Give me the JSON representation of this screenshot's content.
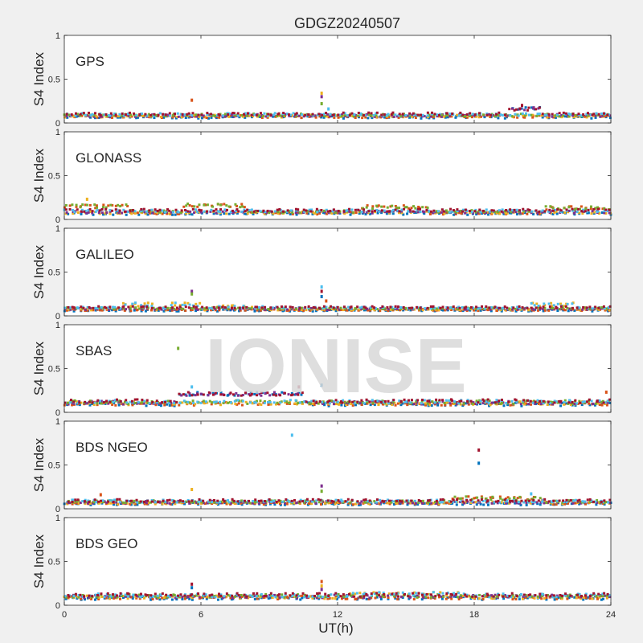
{
  "figure": {
    "title": "GDGZ20240507",
    "watermark": "IONISE",
    "xlabel": "UT(h)",
    "ylabel": "S4 Index",
    "xticks": [
      "0",
      "6",
      "12",
      "18",
      "24"
    ],
    "yticks": [
      "0",
      "0.5",
      "1"
    ]
  },
  "colors": {
    "series": [
      "#0072BD",
      "#D95319",
      "#EDB120",
      "#7E2F8E",
      "#77AC30",
      "#4DBEEE",
      "#A2142F"
    ],
    "background": "#f0f0f0",
    "axes": "#ffffff",
    "watermark": "#d9d9d9"
  },
  "chart_data": [
    {
      "type": "scatter",
      "label": "GPS",
      "xlim": [
        0,
        24
      ],
      "ylim": [
        0,
        1
      ],
      "grid": false,
      "baseline": [
        0.07,
        0.1
      ],
      "bumps": [
        {
          "x0": 19.5,
          "x1": 21.0,
          "y": 0.16
        }
      ],
      "outliers": [
        {
          "x": 5.6,
          "y": 0.26
        },
        {
          "x": 11.3,
          "y": 0.34
        },
        {
          "x": 11.3,
          "y": 0.3
        },
        {
          "x": 11.3,
          "y": 0.22
        },
        {
          "x": 11.6,
          "y": 0.16
        },
        {
          "x": 20.1,
          "y": 0.2
        }
      ]
    },
    {
      "type": "scatter",
      "label": "GLONASS",
      "xlim": [
        0,
        24
      ],
      "ylim": [
        0,
        1
      ],
      "grid": false,
      "baseline": [
        0.07,
        0.1
      ],
      "bumps": [
        {
          "x0": 0.0,
          "x1": 2.8,
          "y": 0.15
        },
        {
          "x0": 5.2,
          "x1": 8.0,
          "y": 0.16
        },
        {
          "x0": 13.0,
          "x1": 16.0,
          "y": 0.14
        },
        {
          "x0": 21.0,
          "x1": 24.0,
          "y": 0.13
        }
      ],
      "outliers": [
        {
          "x": 1.0,
          "y": 0.23
        }
      ]
    },
    {
      "type": "scatter",
      "label": "GALILEO",
      "xlim": [
        0,
        24
      ],
      "ylim": [
        0,
        1
      ],
      "grid": false,
      "baseline": [
        0.07,
        0.09
      ],
      "bumps": [
        {
          "x0": 2.5,
          "x1": 4.0,
          "y": 0.13
        },
        {
          "x0": 4.5,
          "x1": 6.0,
          "y": 0.13
        },
        {
          "x0": 6.5,
          "x1": 9.0,
          "y": 0.1
        },
        {
          "x0": 20.5,
          "x1": 22.5,
          "y": 0.13
        }
      ],
      "outliers": [
        {
          "x": 5.6,
          "y": 0.28
        },
        {
          "x": 5.6,
          "y": 0.25
        },
        {
          "x": 11.3,
          "y": 0.33
        },
        {
          "x": 11.3,
          "y": 0.28
        },
        {
          "x": 11.3,
          "y": 0.22
        },
        {
          "x": 11.5,
          "y": 0.17
        }
      ]
    },
    {
      "type": "scatter",
      "label": "SBAS",
      "xlim": [
        0,
        24
      ],
      "ylim": [
        0,
        1
      ],
      "grid": false,
      "baseline": [
        0.09,
        0.13
      ],
      "bumps": [
        {
          "x0": 5.0,
          "x1": 10.5,
          "y": 0.21
        }
      ],
      "outliers": [
        {
          "x": 5.0,
          "y": 0.73
        },
        {
          "x": 5.6,
          "y": 0.29
        },
        {
          "x": 10.3,
          "y": 0.29
        },
        {
          "x": 11.3,
          "y": 0.31
        },
        {
          "x": 23.8,
          "y": 0.23
        }
      ]
    },
    {
      "type": "scatter",
      "label": "BDS NGEO",
      "xlim": [
        0,
        24
      ],
      "ylim": [
        0,
        1
      ],
      "grid": false,
      "baseline": [
        0.06,
        0.09
      ],
      "bumps": [
        {
          "x0": 17.0,
          "x1": 21.0,
          "y": 0.12
        }
      ],
      "outliers": [
        {
          "x": 10.0,
          "y": 0.84
        },
        {
          "x": 18.2,
          "y": 0.67
        },
        {
          "x": 18.2,
          "y": 0.52
        },
        {
          "x": 1.6,
          "y": 0.16
        },
        {
          "x": 5.6,
          "y": 0.22
        },
        {
          "x": 11.3,
          "y": 0.26
        },
        {
          "x": 11.3,
          "y": 0.2
        },
        {
          "x": 20.5,
          "y": 0.17
        }
      ]
    },
    {
      "type": "scatter",
      "label": "BDS GEO",
      "xlim": [
        0,
        24
      ],
      "ylim": [
        0,
        1
      ],
      "grid": false,
      "baseline": [
        0.08,
        0.12
      ],
      "bumps": [
        {
          "x0": 12.5,
          "x1": 17.5,
          "y": 0.13
        }
      ],
      "outliers": [
        {
          "x": 5.6,
          "y": 0.24
        },
        {
          "x": 5.6,
          "y": 0.2
        },
        {
          "x": 11.3,
          "y": 0.27
        },
        {
          "x": 11.3,
          "y": 0.22
        },
        {
          "x": 11.3,
          "y": 0.18
        }
      ]
    }
  ]
}
